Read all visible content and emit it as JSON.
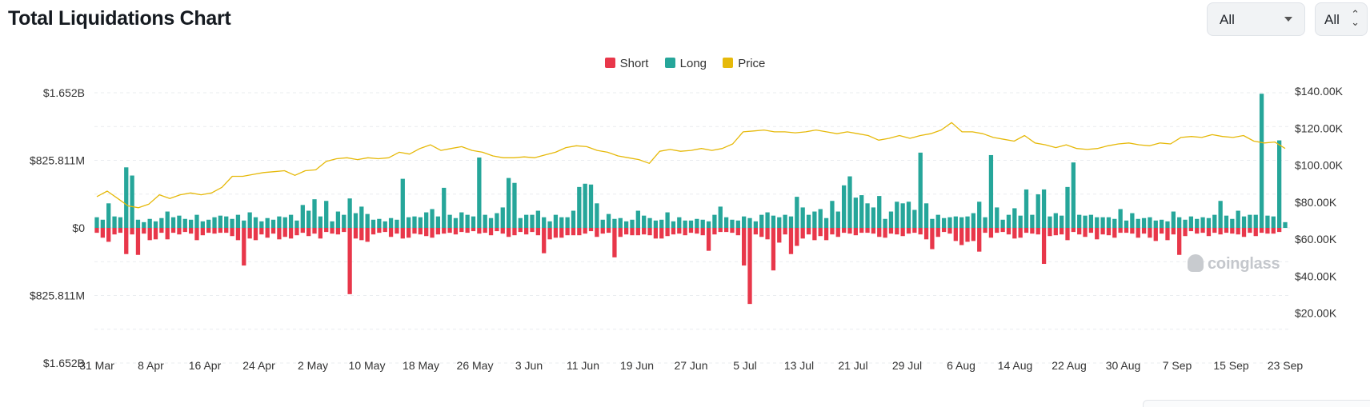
{
  "header": {
    "title": "Total Liquidations Chart",
    "range_select": "All",
    "coin_select": "All",
    "range_icon": "caret-down-icon",
    "coin_icon": "updown-chevron-icon"
  },
  "watermark": {
    "text": "coinglass",
    "icon": "coinglass-logo-icon"
  },
  "colors": {
    "short": "#e8374a",
    "long": "#26a69a",
    "price": "#e6b90a",
    "grid": "#e9ecef",
    "axis_text": "#333333"
  },
  "chart_data": {
    "type": "bar",
    "title": "Total Liquidations Chart",
    "legend": [
      "Short",
      "Long",
      "Price"
    ],
    "legend_position": "top-center",
    "y_left_ticks": [
      "$1.652B",
      "$825.811M",
      "$0",
      "$825.811M",
      "$1.652B"
    ],
    "y_left_range": [
      -1652000000,
      1652000000
    ],
    "y_right_ticks": [
      "$140.00K",
      "$120.00K",
      "$100.00K",
      "$80.00K",
      "$60.00K",
      "$40.00K",
      "$20.00K"
    ],
    "y_right_range": [
      0,
      140000
    ],
    "x_ticks": [
      "31 Mar",
      "8 Apr",
      "16 Apr",
      "24 Apr",
      "2 May",
      "10 May",
      "18 May",
      "26 May",
      "3 Jun",
      "11 Jun",
      "19 Jun",
      "27 Jun",
      "5 Jul",
      "13 Jul",
      "21 Jul",
      "29 Jul",
      "6 Aug",
      "14 Aug",
      "22 Aug",
      "30 Aug",
      "7 Sep",
      "15 Sep",
      "23 Sep"
    ],
    "start_date": "31 Mar",
    "grid": true,
    "series": [
      {
        "name": "Long",
        "unit": "USD",
        "values": [
          130,
          100,
          300,
          140,
          130,
          740,
          640,
          100,
          70,
          110,
          80,
          120,
          200,
          130,
          150,
          110,
          100,
          160,
          80,
          100,
          130,
          150,
          140,
          110,
          160,
          90,
          190,
          130,
          80,
          120,
          100,
          140,
          130,
          160,
          90,
          280,
          210,
          350,
          140,
          330,
          80,
          200,
          160,
          360,
          180,
          260,
          170,
          100,
          110,
          80,
          120,
          100,
          600,
          130,
          140,
          130,
          190,
          230,
          140,
          490,
          160,
          120,
          190,
          160,
          140,
          860,
          160,
          120,
          180,
          250,
          610,
          550,
          120,
          160,
          160,
          210,
          130,
          80,
          160,
          130,
          130,
          210,
          500,
          540,
          530,
          300,
          100,
          170,
          110,
          120,
          80,
          100,
          210,
          150,
          120,
          90,
          100,
          190,
          80,
          130,
          90,
          90,
          110,
          100,
          80,
          160,
          260,
          130,
          100,
          90,
          140,
          120,
          80,
          160,
          190,
          150,
          130,
          160,
          140,
          380,
          250,
          160,
          200,
          230,
          120,
          330,
          200,
          520,
          630,
          370,
          400,
          300,
          250,
          390,
          110,
          200,
          320,
          300,
          320,
          220,
          920,
          300,
          110,
          160,
          120,
          130,
          140,
          130,
          140,
          180,
          320,
          130,
          890,
          250,
          100,
          160,
          240,
          150,
          470,
          160,
          410,
          470,
          140,
          180,
          150,
          500,
          800,
          160,
          150,
          160,
          130,
          130,
          130,
          110,
          230,
          90,
          180,
          110,
          120,
          130,
          90,
          100,
          80,
          200,
          130,
          100,
          140,
          110,
          130,
          120,
          160,
          330,
          150,
          110,
          210,
          140,
          160,
          160,
          1640,
          150,
          140,
          1070,
          70
        ]
      },
      {
        "name": "Short",
        "unit": "USD",
        "values": [
          60,
          120,
          170,
          80,
          60,
          320,
          80,
          330,
          70,
          150,
          140,
          60,
          140,
          60,
          80,
          50,
          70,
          150,
          90,
          60,
          70,
          60,
          60,
          100,
          150,
          460,
          130,
          150,
          80,
          120,
          70,
          140,
          110,
          130,
          90,
          60,
          100,
          70,
          130,
          50,
          70,
          80,
          50,
          810,
          130,
          150,
          170,
          80,
          60,
          50,
          110,
          70,
          130,
          120,
          70,
          80,
          100,
          120,
          80,
          70,
          60,
          80,
          50,
          60,
          40,
          70,
          60,
          90,
          40,
          70,
          110,
          90,
          50,
          80,
          50,
          90,
          310,
          140,
          120,
          120,
          90,
          90,
          90,
          70,
          40,
          110,
          70,
          60,
          360,
          110,
          80,
          90,
          90,
          80,
          90,
          130,
          130,
          100,
          80,
          70,
          90,
          60,
          70,
          90,
          280,
          80,
          50,
          50,
          60,
          90,
          460,
          930,
          80,
          110,
          140,
          520,
          180,
          80,
          320,
          220,
          130,
          80,
          150,
          100,
          150,
          80,
          110,
          60,
          70,
          90,
          60,
          60,
          70,
          110,
          120,
          70,
          80,
          100,
          70,
          60,
          80,
          140,
          260,
          110,
          50,
          70,
          160,
          210,
          170,
          160,
          290,
          60,
          120,
          60,
          50,
          80,
          130,
          120,
          60,
          70,
          80,
          440,
          100,
          90,
          80,
          150,
          50,
          80,
          110,
          60,
          140,
          80,
          90,
          120,
          60,
          60,
          70,
          120,
          70,
          120,
          160,
          70,
          150,
          80,
          330,
          100,
          40,
          70,
          60,
          100,
          60,
          80,
          60,
          70,
          80,
          110,
          60,
          100,
          60,
          70,
          70,
          50
        ]
      },
      {
        "name": "Price",
        "unit": "USD",
        "values": [
          83000,
          86000,
          82000,
          78000,
          77000,
          79000,
          84000,
          82000,
          84000,
          85000,
          84000,
          85000,
          88000,
          94000,
          94000,
          95000,
          96000,
          96500,
          97000,
          94500,
          97000,
          97500,
          102000,
          103500,
          104000,
          103000,
          104000,
          103500,
          104000,
          107000,
          106000,
          109000,
          111000,
          108000,
          109000,
          110000,
          108000,
          107000,
          105000,
          104000,
          104000,
          104500,
          104000,
          105500,
          107000,
          109500,
          110500,
          110000,
          108000,
          107000,
          105000,
          104000,
          103000,
          101000,
          107500,
          108500,
          107500,
          108000,
          109000,
          108000,
          109000,
          111500,
          118000,
          118500,
          119000,
          118000,
          118000,
          117500,
          118000,
          119000,
          118000,
          117000,
          118000,
          117000,
          116000,
          113500,
          114500,
          116000,
          114500,
          116000,
          117000,
          119000,
          123000,
          118000,
          118000,
          117000,
          115000,
          114000,
          113000,
          116000,
          112000,
          111000,
          109500,
          111000,
          109000,
          108500,
          109000,
          110500,
          111500,
          112000,
          111000,
          110500,
          112000,
          111500,
          115000,
          115500,
          115000,
          116500,
          115500,
          115000,
          116000,
          113000,
          112000,
          112500,
          109000
        ]
      }
    ]
  }
}
